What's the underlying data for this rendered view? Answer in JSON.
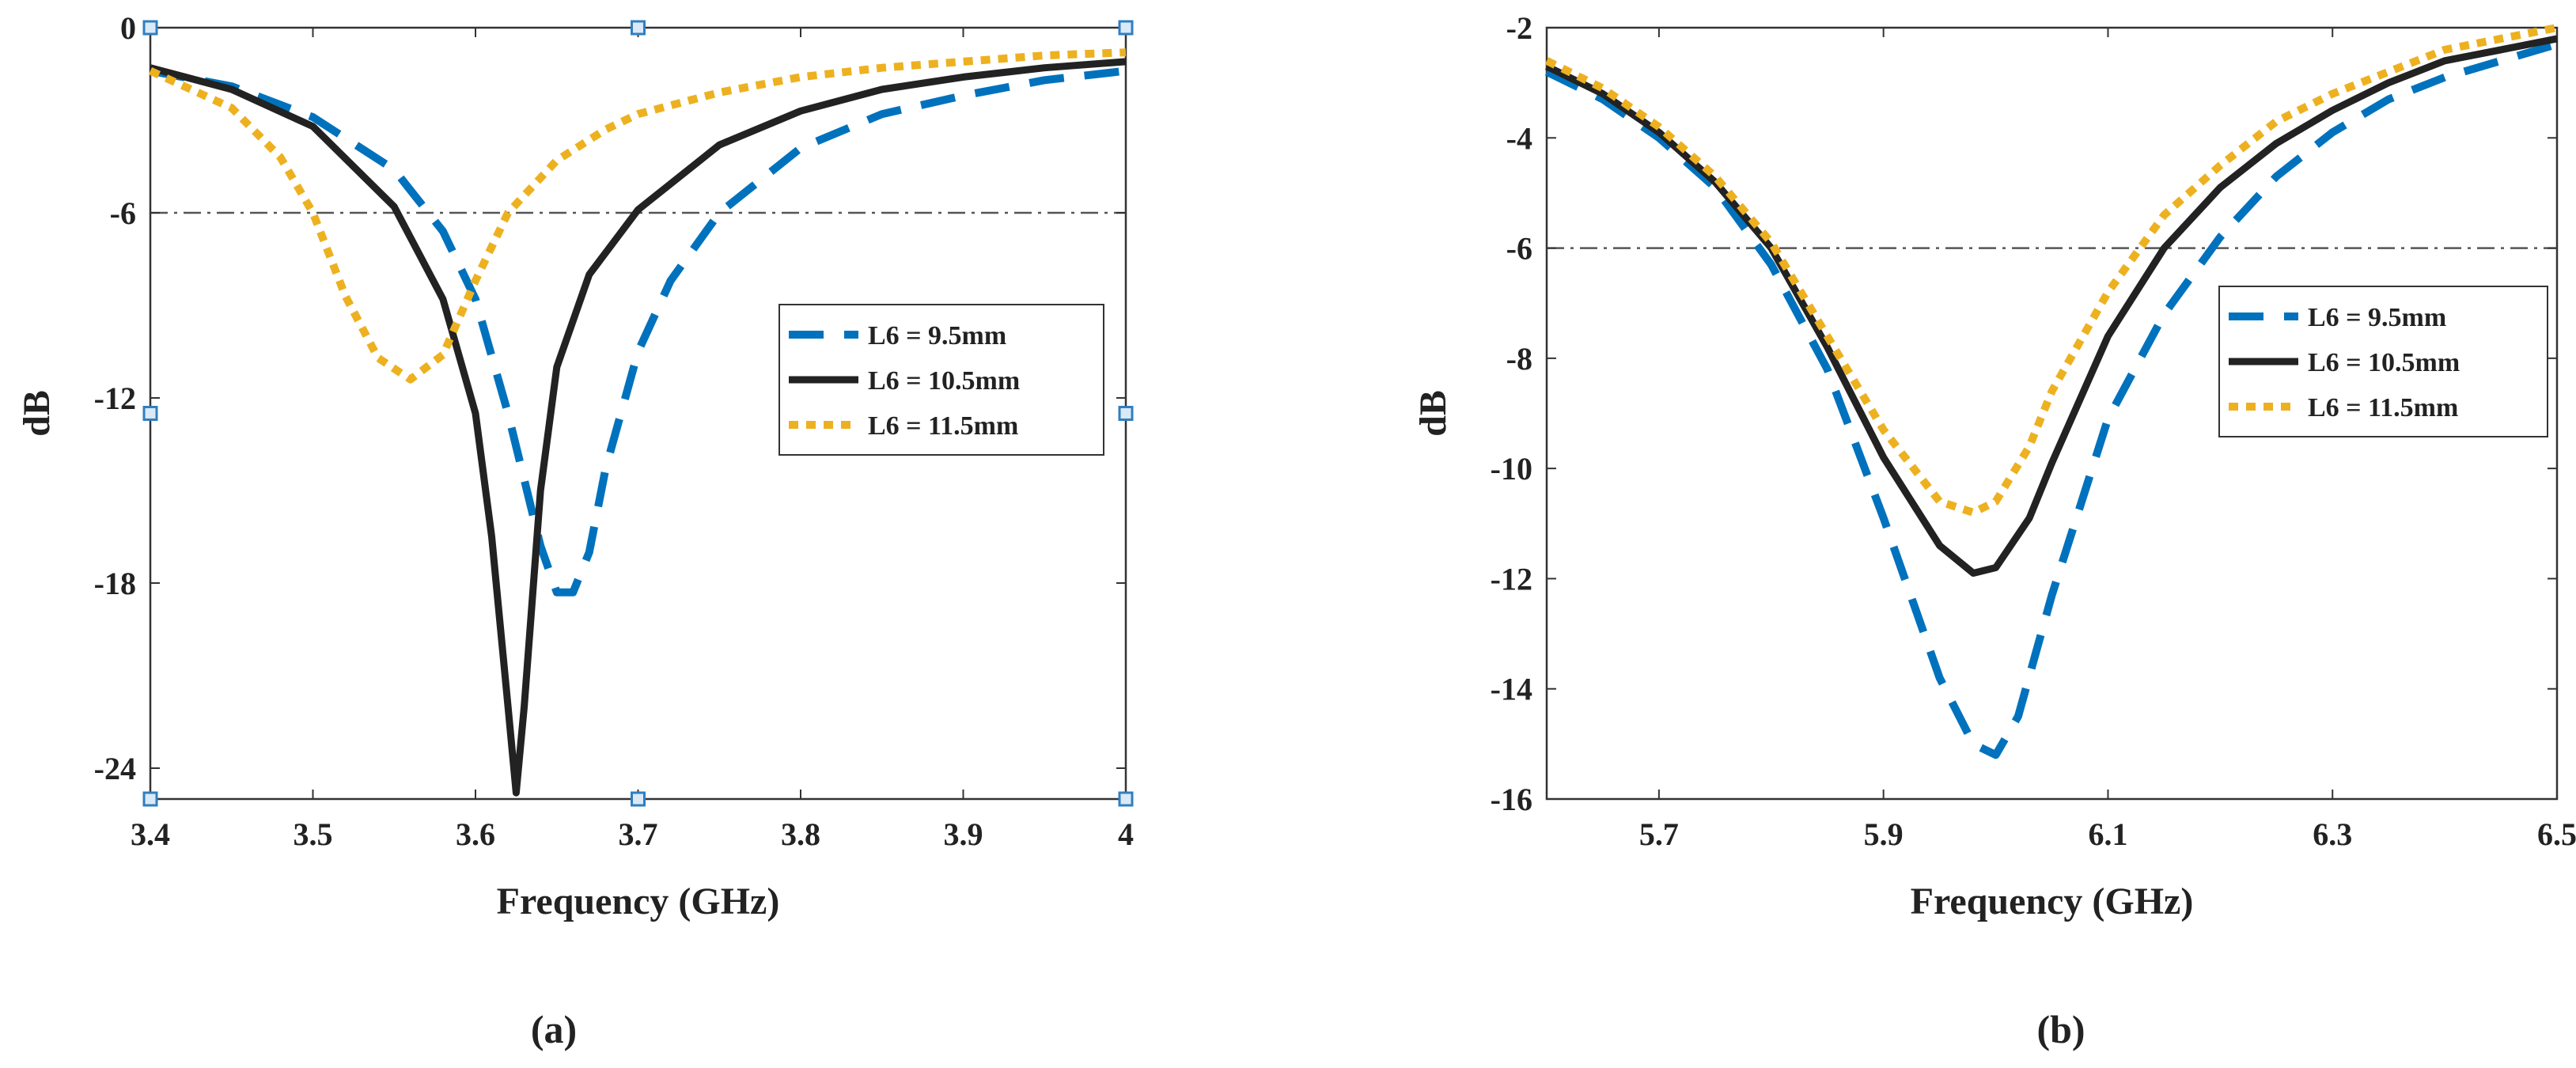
{
  "chart_data": [
    {
      "type": "line",
      "caption": "(a)",
      "xlabel": "Frequency (GHz)",
      "ylabel": "dB",
      "xlim": [
        3.4,
        4.0
      ],
      "ylim": [
        -25,
        0
      ],
      "xticks": [
        3.4,
        3.5,
        3.6,
        3.7,
        3.8,
        3.9,
        4.0
      ],
      "xtick_labels": [
        "3.4",
        "3.5",
        "3.6",
        "3.7",
        "3.8",
        "3.9",
        "4"
      ],
      "yticks": [
        0,
        -6,
        -12,
        -18,
        -24
      ],
      "ytick_labels": [
        "0",
        "-6",
        "-12",
        "-18",
        "-24"
      ],
      "reference_line": -6,
      "legend_position": "center-right",
      "corner_markers": {
        "x": [
          3.4,
          3.7,
          4.0
        ],
        "y": [
          0,
          -12.5,
          -25
        ]
      },
      "series": [
        {
          "name": "L6 = 9.5mm",
          "color": "#0072BD",
          "dash": "dashed",
          "x": [
            3.4,
            3.45,
            3.5,
            3.55,
            3.58,
            3.6,
            3.62,
            3.64,
            3.65,
            3.66,
            3.67,
            3.68,
            3.7,
            3.72,
            3.75,
            3.8,
            3.85,
            3.9,
            3.95,
            4.0
          ],
          "y": [
            -1.4,
            -1.9,
            -2.9,
            -4.6,
            -6.6,
            -8.8,
            -12.5,
            -16.8,
            -18.3,
            -18.3,
            -17.0,
            -14.3,
            -10.5,
            -8.2,
            -6.0,
            -3.9,
            -2.8,
            -2.2,
            -1.7,
            -1.4
          ]
        },
        {
          "name": "L6 = 10.5mm",
          "color": "#222222",
          "dash": "solid",
          "x": [
            3.4,
            3.45,
            3.5,
            3.55,
            3.58,
            3.6,
            3.61,
            3.62,
            3.625,
            3.63,
            3.64,
            3.65,
            3.67,
            3.7,
            3.75,
            3.8,
            3.85,
            3.9,
            3.95,
            4.0
          ],
          "y": [
            -1.3,
            -2.0,
            -3.2,
            -5.8,
            -8.8,
            -12.5,
            -16.5,
            -22.0,
            -24.8,
            -22.0,
            -15.0,
            -11.0,
            -8.0,
            -5.9,
            -3.8,
            -2.7,
            -2.0,
            -1.6,
            -1.3,
            -1.1
          ]
        },
        {
          "name": "L6 = 11.5mm",
          "color": "#EDB120",
          "dash": "dotted",
          "x": [
            3.4,
            3.45,
            3.48,
            3.5,
            3.52,
            3.54,
            3.56,
            3.58,
            3.6,
            3.62,
            3.65,
            3.68,
            3.7,
            3.75,
            3.8,
            3.85,
            3.9,
            3.95,
            4.0
          ],
          "y": [
            -1.4,
            -2.6,
            -4.2,
            -6.0,
            -8.7,
            -10.7,
            -11.4,
            -10.6,
            -8.2,
            -6.0,
            -4.3,
            -3.3,
            -2.8,
            -2.1,
            -1.6,
            -1.3,
            -1.1,
            -0.9,
            -0.8
          ]
        }
      ]
    },
    {
      "type": "line",
      "caption": "(b)",
      "xlabel": "Frequency (GHz)",
      "ylabel": "dB",
      "xlim": [
        5.6,
        6.5
      ],
      "ylim": [
        -16,
        -2
      ],
      "xticks": [
        5.7,
        5.9,
        6.1,
        6.3,
        6.5
      ],
      "xtick_labels": [
        "5.7",
        "5.9",
        "6.1",
        "6.3",
        "6.5"
      ],
      "yticks": [
        -2,
        -4,
        -6,
        -8,
        -10,
        -12,
        -14,
        -16
      ],
      "ytick_labels": [
        "-2",
        "-4",
        "-6",
        "-8",
        "-10",
        "-12",
        "-14",
        "-16"
      ],
      "reference_line": -6,
      "legend_position": "center-right",
      "series": [
        {
          "name": "L6 = 9.5mm",
          "color": "#0072BD",
          "dash": "dashed",
          "x": [
            5.6,
            5.65,
            5.7,
            5.75,
            5.8,
            5.85,
            5.9,
            5.95,
            5.98,
            6.0,
            6.02,
            6.05,
            6.1,
            6.15,
            6.2,
            6.25,
            6.3,
            6.35,
            6.4,
            6.45,
            6.5
          ],
          "y": [
            -2.8,
            -3.3,
            -4.0,
            -4.9,
            -6.3,
            -8.2,
            -10.9,
            -13.8,
            -15.0,
            -15.2,
            -14.5,
            -12.3,
            -9.1,
            -7.2,
            -5.8,
            -4.7,
            -3.9,
            -3.3,
            -2.9,
            -2.6,
            -2.3
          ]
        },
        {
          "name": "L6 = 10.5mm",
          "color": "#222222",
          "dash": "solid",
          "x": [
            5.6,
            5.65,
            5.7,
            5.75,
            5.8,
            5.85,
            5.9,
            5.95,
            5.98,
            6.0,
            6.03,
            6.05,
            6.1,
            6.15,
            6.2,
            6.25,
            6.3,
            6.35,
            6.4,
            6.45,
            6.5
          ],
          "y": [
            -2.7,
            -3.2,
            -3.9,
            -4.8,
            -6.0,
            -7.8,
            -9.8,
            -11.4,
            -11.9,
            -11.8,
            -10.9,
            -9.9,
            -7.6,
            -6.0,
            -4.9,
            -4.1,
            -3.5,
            -3.0,
            -2.6,
            -2.4,
            -2.2
          ]
        },
        {
          "name": "L6 = 11.5mm",
          "color": "#EDB120",
          "dash": "dotted",
          "x": [
            5.6,
            5.65,
            5.7,
            5.75,
            5.8,
            5.85,
            5.9,
            5.95,
            5.98,
            6.0,
            6.03,
            6.05,
            6.1,
            6.15,
            6.2,
            6.25,
            6.3,
            6.35,
            6.4,
            6.45,
            6.5
          ],
          "y": [
            -2.6,
            -3.1,
            -3.8,
            -4.7,
            -5.9,
            -7.6,
            -9.3,
            -10.6,
            -10.8,
            -10.6,
            -9.6,
            -8.6,
            -6.8,
            -5.4,
            -4.5,
            -3.7,
            -3.2,
            -2.8,
            -2.4,
            -2.2,
            -2.0
          ]
        }
      ]
    }
  ]
}
